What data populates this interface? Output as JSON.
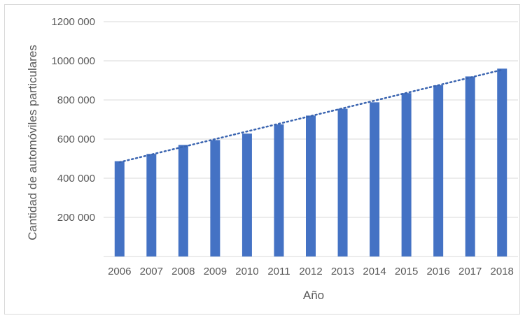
{
  "chart_data": {
    "type": "bar",
    "title": "",
    "xlabel": "Año",
    "ylabel": "Cantidad de automóviles particulares",
    "categories": [
      "2006",
      "2007",
      "2008",
      "2009",
      "2010",
      "2011",
      "2012",
      "2013",
      "2014",
      "2015",
      "2016",
      "2017",
      "2018"
    ],
    "values": [
      487000,
      524000,
      570000,
      595000,
      628000,
      675000,
      720000,
      755000,
      788000,
      835000,
      875000,
      920000,
      960000
    ],
    "ylim": [
      0,
      1200000
    ],
    "yticks": [
      200000,
      400000,
      600000,
      800000,
      1000000,
      1200000
    ],
    "ytick_labels": [
      "200 000",
      "400 000",
      "600 000",
      "800 000",
      "1000 000",
      "1200 000"
    ],
    "trendline": {
      "type": "linear",
      "style": "dotted"
    },
    "grid": true,
    "colors": {
      "bar": "#4472c4",
      "trend": "#3a64b0",
      "grid": "#d9d9d9",
      "text": "#595959"
    }
  }
}
